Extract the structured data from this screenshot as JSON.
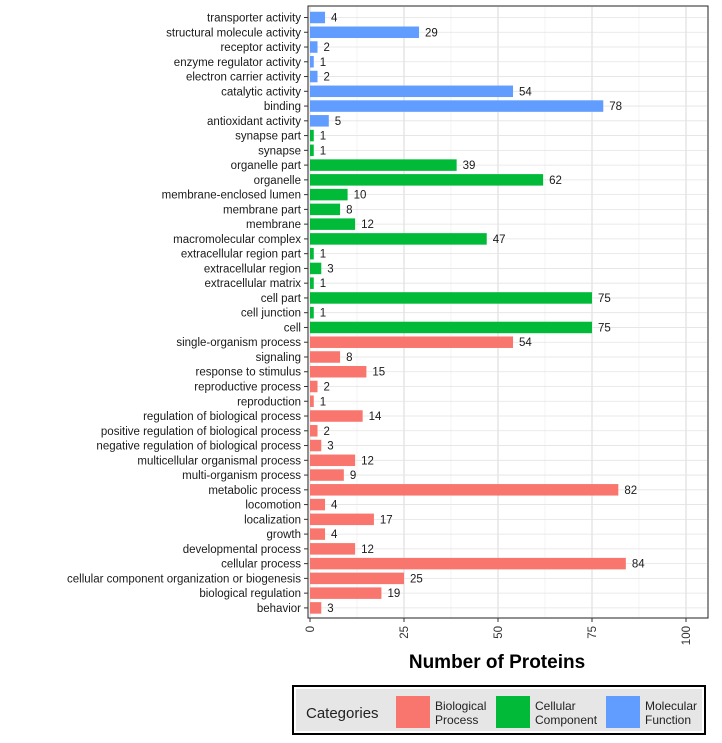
{
  "chart_data": {
    "type": "bar",
    "orientation": "horizontal",
    "xlabel": "Number of Proteins",
    "xlim": [
      0,
      100
    ],
    "xticks": [
      "0",
      "25",
      "50",
      "75",
      "100"
    ],
    "grid": true,
    "legend_title": "Categories",
    "legend_position": "bottom-right",
    "series": [
      {
        "name": "Biological Process",
        "name_display": "Biological\nProcess",
        "color": "#f8766d"
      },
      {
        "name": "Cellular Component",
        "name_display": "Cellular\nComponent",
        "color": "#00ba38"
      },
      {
        "name": "Molecular Function",
        "name_display": "Molecular\nFunction",
        "color": "#619cff"
      }
    ],
    "bars": [
      {
        "label": "transporter activity",
        "value": 4,
        "series": 2
      },
      {
        "label": "structural molecule activity",
        "value": 29,
        "series": 2
      },
      {
        "label": "receptor activity",
        "value": 2,
        "series": 2
      },
      {
        "label": "enzyme regulator activity",
        "value": 1,
        "series": 2
      },
      {
        "label": "electron carrier activity",
        "value": 2,
        "series": 2
      },
      {
        "label": "catalytic activity",
        "value": 54,
        "series": 2
      },
      {
        "label": "binding",
        "value": 78,
        "series": 2
      },
      {
        "label": "antioxidant activity",
        "value": 5,
        "series": 2
      },
      {
        "label": "synapse part",
        "value": 1,
        "series": 1
      },
      {
        "label": "synapse",
        "value": 1,
        "series": 1
      },
      {
        "label": "organelle part",
        "value": 39,
        "series": 1
      },
      {
        "label": "organelle",
        "value": 62,
        "series": 1
      },
      {
        "label": "membrane-enclosed lumen",
        "value": 10,
        "series": 1
      },
      {
        "label": "membrane part",
        "value": 8,
        "series": 1
      },
      {
        "label": "membrane",
        "value": 12,
        "series": 1
      },
      {
        "label": "macromolecular complex",
        "value": 47,
        "series": 1
      },
      {
        "label": "extracellular region part",
        "value": 1,
        "series": 1
      },
      {
        "label": "extracellular region",
        "value": 3,
        "series": 1
      },
      {
        "label": "extracellular matrix",
        "value": 1,
        "series": 1
      },
      {
        "label": "cell part",
        "value": 75,
        "series": 1
      },
      {
        "label": "cell junction",
        "value": 1,
        "series": 1
      },
      {
        "label": "cell",
        "value": 75,
        "series": 1
      },
      {
        "label": "single-organism process",
        "value": 54,
        "series": 0
      },
      {
        "label": "signaling",
        "value": 8,
        "series": 0
      },
      {
        "label": "response to stimulus",
        "value": 15,
        "series": 0
      },
      {
        "label": "reproductive process",
        "value": 2,
        "series": 0
      },
      {
        "label": "reproduction",
        "value": 1,
        "series": 0
      },
      {
        "label": "regulation of biological process",
        "value": 14,
        "series": 0
      },
      {
        "label": "positive regulation of biological process",
        "value": 2,
        "series": 0
      },
      {
        "label": "negative regulation of biological process",
        "value": 3,
        "series": 0
      },
      {
        "label": "multicellular organismal process",
        "value": 12,
        "series": 0
      },
      {
        "label": "multi-organism process",
        "value": 9,
        "series": 0
      },
      {
        "label": "metabolic process",
        "value": 82,
        "series": 0
      },
      {
        "label": "locomotion",
        "value": 4,
        "series": 0
      },
      {
        "label": "localization",
        "value": 17,
        "series": 0
      },
      {
        "label": "growth",
        "value": 4,
        "series": 0
      },
      {
        "label": "developmental process",
        "value": 12,
        "series": 0
      },
      {
        "label": "cellular process",
        "value": 84,
        "series": 0
      },
      {
        "label": "cellular component organization or biogenesis",
        "value": 25,
        "series": 0
      },
      {
        "label": "biological regulation",
        "value": 19,
        "series": 0
      },
      {
        "label": "behavior",
        "value": 3,
        "series": 0
      }
    ]
  }
}
